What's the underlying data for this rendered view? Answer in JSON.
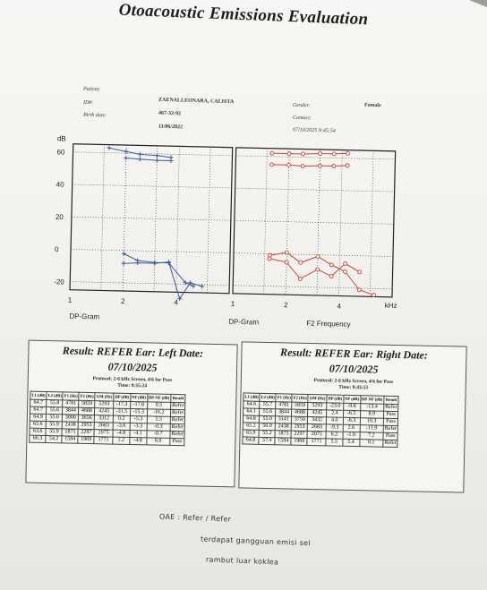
{
  "title": "Otoacoustic Emissions Evaluation",
  "patient": {
    "patient_label": "Patient:",
    "id_label": "ID#:",
    "birth_label": "Birth date:",
    "name": "ZAENALLEONARA, CALISTA",
    "id": "467-32-92",
    "birth_date": "11/06/2022",
    "gender_label": "Gender:",
    "gender": "Female",
    "contact_label": "Contact:",
    "test_datetime": "07/10/2025 9:45:54"
  },
  "graph": {
    "db_label": "dB",
    "y_ticks": [
      "60",
      "40",
      "20",
      "0",
      "-20"
    ],
    "left_x_ticks": [
      "1",
      "2",
      "4"
    ],
    "right_x_ticks": [
      "1",
      "2",
      "4"
    ],
    "khz_label": "kHz",
    "left_caption": "DP-Gram",
    "center_caption": "DP-Gram",
    "right_caption": "F2 Frequency"
  },
  "chart_data": [
    {
      "type": "line",
      "title": "DP-Gram",
      "ear": "Left",
      "xlabel": "kHz",
      "ylabel": "dB",
      "xscale": "log",
      "xlim": [
        1,
        8
      ],
      "ylim": [
        -25,
        65
      ],
      "grid": true,
      "series": [
        {
          "x": [
            1.6,
            2.0,
            2.4,
            3.0,
            3.6
          ],
          "values": [
            63,
            61,
            59.5,
            59,
            58
          ]
        },
        {
          "x": [
            2.0,
            2.4,
            3.0,
            3.6
          ],
          "values": [
            57,
            56.5,
            56,
            56
          ]
        },
        {
          "x": [
            2.0,
            2.4,
            3.0,
            3.6,
            4.5,
            5.0
          ],
          "values": [
            -2,
            -6,
            -7,
            -7,
            -19,
            -21
          ]
        },
        {
          "x": [
            2.0,
            2.4,
            3.0,
            3.6,
            4.2,
            4.8,
            5.6
          ],
          "values": [
            -8,
            -7.5,
            -7.5,
            -6.5,
            -29,
            -19,
            -21
          ]
        }
      ]
    },
    {
      "type": "line",
      "title": "DP-Gram",
      "ear": "Right",
      "xlabel": "kHz",
      "ylabel": "dB",
      "xscale": "log",
      "xlim": [
        1,
        8
      ],
      "ylim": [
        -25,
        65
      ],
      "grid": true,
      "series": [
        {
          "x": [
            1.6,
            2.0,
            2.4,
            3.0,
            3.6,
            4.3
          ],
          "values": [
            62,
            62,
            62,
            62.5,
            62.5,
            63
          ]
        },
        {
          "x": [
            1.6,
            2.0,
            2.4,
            3.0,
            3.6,
            4.3
          ],
          "values": [
            55,
            55,
            54.5,
            55,
            55,
            55.5
          ]
        },
        {
          "x": [
            1.6,
            2.0,
            2.4,
            3.0,
            3.6,
            4.3,
            5.2,
            6.3
          ],
          "values": [
            -1,
            1,
            -5,
            -1,
            -6,
            -10,
            -21,
            -24
          ]
        },
        {
          "x": [
            1.6,
            2.0,
            2.4,
            3.0,
            3.6,
            4.3,
            5.2
          ],
          "values": [
            -3,
            -5,
            -15,
            -9,
            -13,
            -5,
            -10
          ]
        }
      ]
    }
  ],
  "results": {
    "left": {
      "header": "Result: REFER  Ear: Left  Date:",
      "date": "07/10/2025",
      "protocol": "Protocol: 2-6 kHz Screen, 4/6 for Pass",
      "time": "Time: 9:35:24",
      "columns": [
        "L1 (dB)",
        "L2 (dB)",
        "F1 (Hz)",
        "F2 (Hz)",
        "GM (Hz)",
        "DP (dB)",
        "NF (dB)",
        "DP-NF (dB)",
        "Result"
      ],
      "rows": [
        [
          "64.7",
          "55.8",
          "4781",
          "5859",
          "5293",
          "-17.3",
          "-17.8",
          "0.5",
          "Refer"
        ],
        [
          "64.7",
          "55.6",
          "3844",
          "4688",
          "4245",
          "-31.5",
          "-15.3",
          "-16.2",
          "Refer"
        ],
        [
          "64.9",
          "55.6",
          "3000",
          "3656",
          "3312",
          "0.2",
          "-5.3",
          "5.5",
          "Refer"
        ],
        [
          "65.6",
          "55.9",
          "2438",
          "2953",
          "2683",
          "-3.6",
          "-3.3",
          "-0.3",
          "Refer"
        ],
        [
          "63.6",
          "55.9",
          "1875",
          "2297",
          "2075",
          "-4.8",
          "-4.1",
          "-0.7",
          "Refer"
        ],
        [
          "66.3",
          "54.2",
          "1594",
          "1969",
          "1771",
          "1.2",
          "-4.8",
          "6.0",
          "Pass"
        ]
      ]
    },
    "right": {
      "header": "Result: REFER  Ear: Right  Date:",
      "date": "07/10/2025",
      "protocol": "Protocol: 2-6 kHz Screen, 4/6 for Pass",
      "time": "Time: 9:43:53",
      "columns": [
        "L1 (dB)",
        "L2 (dB)",
        "F1 (Hz)",
        "F2 (Hz)",
        "GM (Hz)",
        "DP (dB)",
        "NF (dB)",
        "DP-NF (dB)",
        "Result"
      ],
      "rows": [
        [
          "64.6",
          "55.7",
          "4781",
          "5859",
          "5293",
          "-23.0",
          "-9.6",
          "-13.4",
          "Refer"
        ],
        [
          "64.1",
          "55.6",
          "3844",
          "4688",
          "4245",
          "2.4",
          "-6.5",
          "8.9",
          "Pass"
        ],
        [
          "64.8",
          "55.0",
          "3141",
          "3750",
          "3432",
          "4.0",
          "-6.3",
          "10.3",
          "Pass"
        ],
        [
          "65.2",
          "56.0",
          "2438",
          "2953",
          "2683",
          "-9.3",
          "2.6",
          "-11.9",
          "Refer"
        ],
        [
          "65.9",
          "55.2",
          "1875",
          "2297",
          "2075",
          "6.2",
          "-1.0",
          "7.2",
          "Pass"
        ],
        [
          "64.8",
          "57.4",
          "1594",
          "1969",
          "1771",
          "5.5",
          "5.4",
          "0.1",
          "Refer"
        ]
      ]
    }
  },
  "notes": {
    "line1": "OAE : Refer / Refer",
    "line2": "terdapat gangguan emisi sel",
    "line3": "rambut luar koklea"
  },
  "colors": {
    "left_ear": "#3b5c9a",
    "right_ear": "#c4473b",
    "grid": "#333333"
  }
}
